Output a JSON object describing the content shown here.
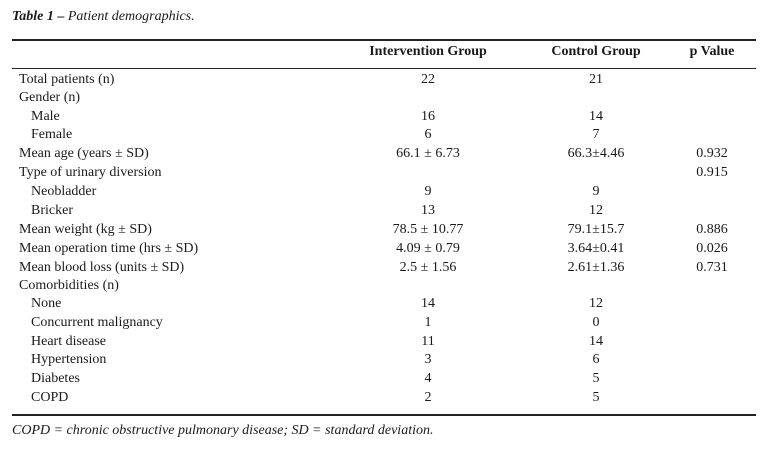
{
  "caption": {
    "label": "Table 1 –",
    "text": "Patient demographics."
  },
  "headers": {
    "col1": "Intervention Group",
    "col2": "Control Group",
    "col3": "p Value"
  },
  "rows": [
    {
      "label": "Total patients (n)",
      "indent": false,
      "intervention": "22",
      "control": "21",
      "p": ""
    },
    {
      "label": "Gender (n)",
      "indent": false,
      "intervention": "",
      "control": "",
      "p": ""
    },
    {
      "label": "Male",
      "indent": true,
      "intervention": "16",
      "control": "14",
      "p": ""
    },
    {
      "label": "Female",
      "indent": true,
      "intervention": "6",
      "control": "7",
      "p": ""
    },
    {
      "label": "Mean age (years ± SD)",
      "indent": false,
      "intervention": "66.1 ± 6.73",
      "control": "66.3±4.46",
      "p": "0.932"
    },
    {
      "label": "Type of urinary diversion",
      "indent": false,
      "intervention": "",
      "control": "",
      "p": "0.915"
    },
    {
      "label": "Neobladder",
      "indent": true,
      "intervention": "9",
      "control": "9",
      "p": ""
    },
    {
      "label": "Bricker",
      "indent": true,
      "intervention": "13",
      "control": "12",
      "p": ""
    },
    {
      "label": "Mean weight (kg ± SD)",
      "indent": false,
      "intervention": "78.5 ± 10.77",
      "control": "79.1±15.7",
      "p": "0.886"
    },
    {
      "label": "Mean operation time (hrs ± SD)",
      "indent": false,
      "intervention": "4.09 ± 0.79",
      "control": "3.64±0.41",
      "p": "0.026"
    },
    {
      "label": "Mean blood loss (units ± SD)",
      "indent": false,
      "intervention": "2.5 ± 1.56",
      "control": "2.61±1.36",
      "p": "0.731"
    },
    {
      "label": "Comorbidities (n)",
      "indent": false,
      "intervention": "",
      "control": "",
      "p": ""
    },
    {
      "label": "None",
      "indent": true,
      "intervention": "14",
      "control": "12",
      "p": ""
    },
    {
      "label": "Concurrent malignancy",
      "indent": true,
      "intervention": "1",
      "control": "0",
      "p": ""
    },
    {
      "label": "Heart disease",
      "indent": true,
      "intervention": "11",
      "control": "14",
      "p": ""
    },
    {
      "label": "Hypertension",
      "indent": true,
      "intervention": "3",
      "control": "6",
      "p": ""
    },
    {
      "label": "Diabetes",
      "indent": true,
      "intervention": "4",
      "control": "5",
      "p": ""
    },
    {
      "label": "COPD",
      "indent": true,
      "intervention": "2",
      "control": "5",
      "p": ""
    }
  ],
  "footnote": "COPD = chronic obstructive pulmonary disease; SD = standard deviation."
}
